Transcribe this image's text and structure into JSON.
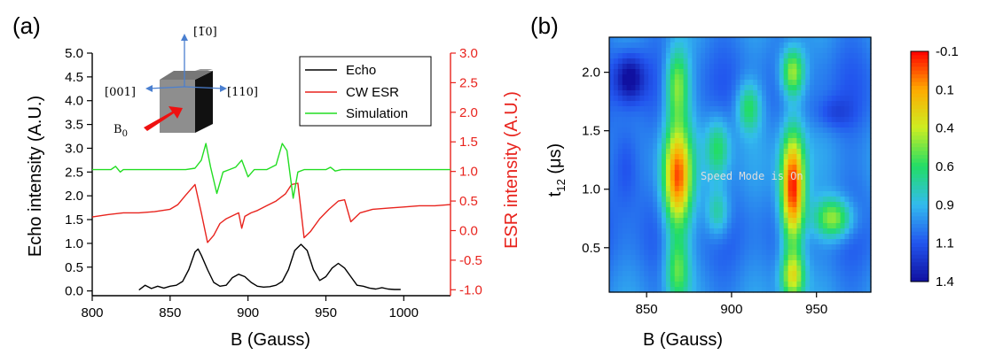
{
  "panels": {
    "a": "(a)",
    "b": "(b)"
  },
  "chart_data": [
    {
      "type": "line",
      "panel": "(a)",
      "xlabel": "B (Gauss)",
      "xlim": [
        800,
        1030
      ],
      "xticks": [
        800,
        850,
        900,
        950,
        1000
      ],
      "ylabel": "Echo intensity (A.U.)",
      "ylim": [
        -0.1,
        5.0
      ],
      "yticks": [
        0.0,
        0.5,
        1.0,
        1.5,
        2.0,
        2.5,
        3.0,
        3.5,
        4.0,
        4.5,
        5.0
      ],
      "y2label": "ESR intensity (A.U.)",
      "y2lim": [
        -1.1,
        3.0
      ],
      "y2ticks": [
        -1.0,
        -0.5,
        0.0,
        0.5,
        1.0,
        1.5,
        2.0,
        2.5,
        3.0
      ],
      "y2color": "#e8231d",
      "legend_position": "top-right",
      "series": [
        {
          "name": "Echo",
          "color": "#000000",
          "axis": "left",
          "x": [
            830,
            834,
            838,
            842,
            846,
            850,
            854,
            858,
            862,
            866,
            868,
            870,
            874,
            878,
            882,
            886,
            890,
            894,
            898,
            902,
            906,
            910,
            914,
            918,
            922,
            926,
            930,
            934,
            938,
            942,
            946,
            950,
            954,
            958,
            962,
            966,
            970,
            974,
            978,
            982,
            986,
            990,
            994,
            998
          ],
          "y": [
            0.02,
            0.12,
            0.05,
            0.1,
            0.06,
            0.1,
            0.12,
            0.2,
            0.45,
            0.82,
            0.88,
            0.75,
            0.45,
            0.18,
            0.1,
            0.12,
            0.28,
            0.35,
            0.3,
            0.18,
            0.1,
            0.08,
            0.09,
            0.12,
            0.2,
            0.45,
            0.85,
            0.98,
            0.85,
            0.45,
            0.22,
            0.3,
            0.48,
            0.58,
            0.48,
            0.3,
            0.12,
            0.1,
            0.06,
            0.04,
            0.07,
            0.04,
            0.03,
            0.03
          ]
        },
        {
          "name": "CW ESR",
          "color": "#e8231d",
          "axis": "right",
          "x": [
            800,
            810,
            820,
            830,
            840,
            850,
            855,
            860,
            864,
            866,
            870,
            874,
            878,
            882,
            886,
            890,
            894,
            896,
            898,
            902,
            906,
            912,
            918,
            924,
            928,
            932,
            936,
            940,
            946,
            952,
            958,
            962,
            966,
            972,
            980,
            990,
            1000,
            1010,
            1020,
            1030
          ],
          "y": [
            0.23,
            0.27,
            0.3,
            0.3,
            0.32,
            0.36,
            0.44,
            0.6,
            0.72,
            0.78,
            0.3,
            -0.2,
            -0.08,
            0.12,
            0.2,
            0.25,
            0.3,
            0.04,
            0.24,
            0.3,
            0.34,
            0.42,
            0.5,
            0.62,
            0.78,
            0.8,
            -0.12,
            -0.02,
            0.2,
            0.36,
            0.5,
            0.52,
            0.15,
            0.3,
            0.36,
            0.38,
            0.4,
            0.42,
            0.42,
            0.44
          ]
        },
        {
          "name": "Simulation",
          "color": "#22dd22",
          "axis": "left",
          "x": [
            800,
            812,
            815,
            818,
            820,
            860,
            866,
            870,
            873,
            876,
            880,
            884,
            888,
            892,
            896,
            900,
            904,
            912,
            918,
            922,
            925,
            929,
            932,
            936,
            950,
            953,
            956,
            960,
            1030
          ],
          "y": [
            2.55,
            2.55,
            2.62,
            2.5,
            2.55,
            2.55,
            2.58,
            2.75,
            3.1,
            2.6,
            2.05,
            2.5,
            2.55,
            2.6,
            2.75,
            2.4,
            2.55,
            2.55,
            2.65,
            3.1,
            2.95,
            1.95,
            2.5,
            2.55,
            2.55,
            2.6,
            2.52,
            2.55,
            2.55
          ]
        }
      ],
      "inset": {
        "direction_labels": [
          "[1̅0]",
          "[001]",
          "[110]"
        ],
        "field_label": "B",
        "field_subscript": "0"
      },
      "grid": false
    },
    {
      "type": "heatmap",
      "panel": "(b)",
      "xlabel": "B (Gauss)",
      "xlim": [
        828,
        982
      ],
      "xticks": [
        850,
        900,
        950
      ],
      "ylabel": "t",
      "ylabel_subscript": "12",
      "ylabel_unit": " (μs)",
      "ylim": [
        0.12,
        2.3
      ],
      "yticks": [
        0.5,
        1.0,
        1.5,
        2.0
      ],
      "overlay_text": "Speed Mode is On",
      "colorbar": {
        "labels": [
          "-0.1",
          "0.1",
          "0.4",
          "0.6",
          "0.9",
          "1.1",
          "1.4"
        ],
        "range": [
          -0.1,
          1.4
        ],
        "colors": [
          "#1010a0",
          "#2255ee",
          "#33bbee",
          "#22dd66",
          "#ccee22",
          "#ffaa00",
          "#ff0000"
        ]
      },
      "peaks": [
        {
          "B": 840,
          "t": 1.95,
          "value": -0.15,
          "wB": 6,
          "wt": 0.14
        },
        {
          "B": 838,
          "t": 1.2,
          "value": 0.05,
          "wB": 6,
          "wt": 0.25
        },
        {
          "B": 868,
          "t": 1.1,
          "value": 1.25,
          "wB": 6,
          "wt": 0.32
        },
        {
          "B": 868,
          "t": 0.3,
          "value": 0.7,
          "wB": 5,
          "wt": 0.2
        },
        {
          "B": 868,
          "t": 1.9,
          "value": 0.8,
          "wB": 5,
          "wt": 0.22
        },
        {
          "B": 892,
          "t": 1.35,
          "value": 0.65,
          "wB": 5,
          "wt": 0.18
        },
        {
          "B": 892,
          "t": 0.8,
          "value": 0.6,
          "wB": 5,
          "wt": 0.15
        },
        {
          "B": 910,
          "t": 1.7,
          "value": 0.65,
          "wB": 5,
          "wt": 0.15
        },
        {
          "B": 936,
          "t": 1.0,
          "value": 1.4,
          "wB": 5,
          "wt": 0.35
        },
        {
          "B": 936,
          "t": 2.0,
          "value": 0.9,
          "wB": 5,
          "wt": 0.15
        },
        {
          "B": 936,
          "t": 0.25,
          "value": 0.9,
          "wB": 5,
          "wt": 0.15
        },
        {
          "B": 960,
          "t": 0.75,
          "value": 0.85,
          "wB": 8,
          "wt": 0.12
        },
        {
          "B": 960,
          "t": 1.65,
          "value": 0.1,
          "wB": 8,
          "wt": 0.1
        }
      ],
      "background_value": 0.25,
      "grid": false
    }
  ]
}
